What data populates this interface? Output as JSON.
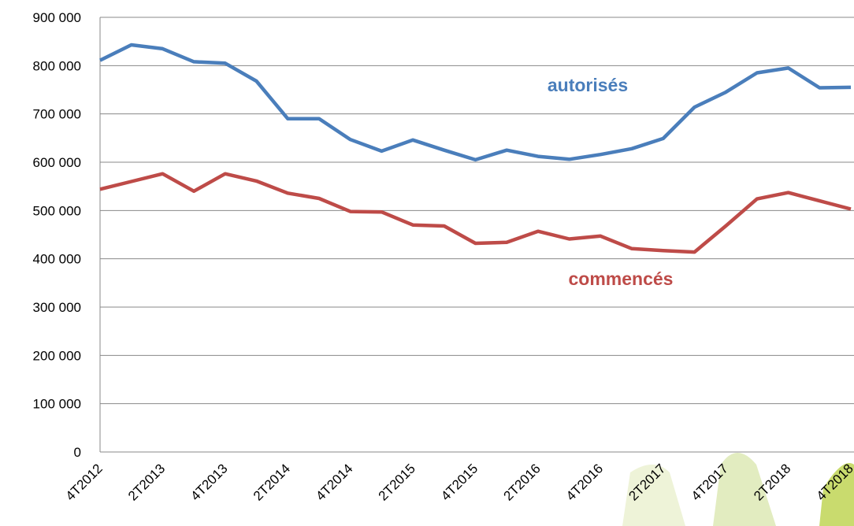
{
  "chart_data": {
    "type": "line",
    "categories": [
      "4T2012",
      null,
      "2T2013",
      null,
      "4T2013",
      null,
      "2T2014",
      null,
      "4T2014",
      null,
      "2T2015",
      null,
      "4T2015",
      null,
      "2T2016",
      null,
      "4T2016",
      null,
      "2T2017",
      null,
      "4T2017",
      null,
      "2T2018",
      null,
      "4T2018"
    ],
    "series": [
      {
        "name": "autorisés",
        "color": "#4a7ebb",
        "values": [
          811000,
          843000,
          835000,
          808000,
          805000,
          768000,
          690000,
          690000,
          647000,
          623000,
          646000,
          625000,
          605000,
          625000,
          612000,
          606000,
          616000,
          628000,
          649000,
          714000,
          745000,
          785000,
          795000,
          754000,
          755000
        ]
      },
      {
        "name": "commencés",
        "color": "#be4b48",
        "values": [
          544000,
          560000,
          576000,
          540000,
          576000,
          561000,
          536000,
          525000,
          498000,
          497000,
          470000,
          468000,
          432000,
          434000,
          457000,
          441000,
          447000,
          421000,
          417000,
          414000,
          468000,
          524000,
          537000,
          520000,
          503000
        ]
      }
    ],
    "ylim": [
      0,
      900000
    ],
    "yticks": [
      0,
      {
        "value": 100000,
        "label": "100 000"
      },
      {
        "value": 200000,
        "label": "200 000"
      },
      {
        "value": 300000,
        "label": "300 000"
      },
      {
        "value": 400000,
        "label": "400 000"
      },
      {
        "value": 500000,
        "label": "500 000"
      },
      {
        "value": 600000,
        "label": "600 000"
      },
      {
        "value": 700000,
        "label": "700 000"
      },
      {
        "value": 800000,
        "label": "800 000"
      },
      {
        "value": 900000,
        "label": "900 000"
      }
    ],
    "grid": true
  }
}
